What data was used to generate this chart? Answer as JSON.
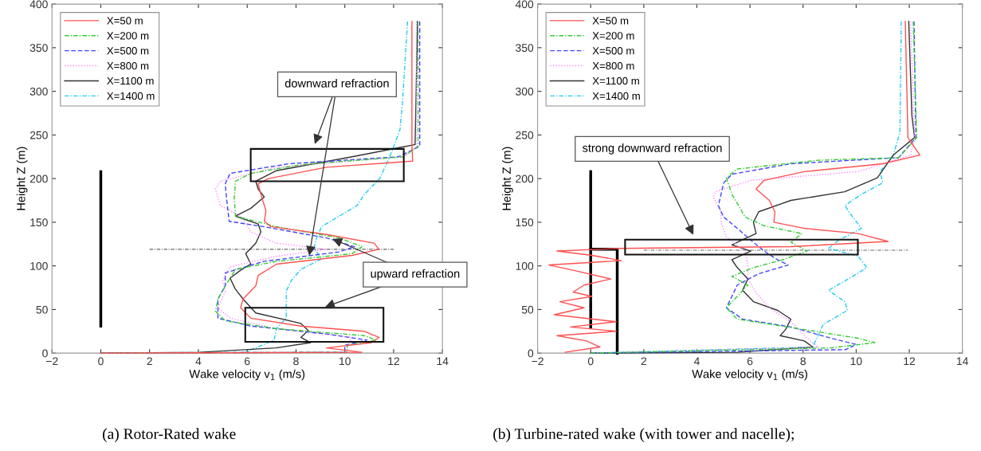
{
  "chart_data": [
    {
      "type": "line",
      "title": "(a) Rotor-Rated wake",
      "xlabel": "Wake velocity v$_{1}$ (m/s)",
      "ylabel": "Height Z (m)",
      "xlim": [
        -2,
        14
      ],
      "xticks": [
        -2,
        0,
        2,
        4,
        6,
        8,
        10,
        12,
        14
      ],
      "ylim": [
        0,
        400
      ],
      "yticks": [
        0,
        50,
        100,
        150,
        200,
        250,
        300,
        350,
        400
      ],
      "grid": false,
      "legend": "top left",
      "series": [
        {
          "name": "X=50 m",
          "color": "#ff5050",
          "line_style": "solid",
          "x": [
            12.75,
            12.75,
            12.78,
            9.25,
            6.87,
            6.45,
            6.56,
            6.77,
            6.7,
            6.97,
            9.25,
            11.2,
            11.4,
            10.3,
            7.2,
            6.45,
            6.35,
            5.83,
            5.73,
            6.15,
            8.2,
            10.8,
            11.4,
            11.1,
            9.25,
            10.7,
            0
          ],
          "values": [
            380,
            237,
            220,
            213,
            200,
            194,
            182,
            163,
            151,
            145,
            136,
            126,
            119,
            112,
            102,
            89,
            77,
            62,
            52,
            40,
            31,
            25,
            18,
            12,
            6,
            1,
            0
          ]
        },
        {
          "name": "X=200 m",
          "color": "#33cc33",
          "line_style": "dashdot",
          "x": [
            13.0,
            13.0,
            12.4,
            8.2,
            6.15,
            5.52,
            5.47,
            5.52,
            7.18,
            9.77,
            10.7,
            10.3,
            7.18,
            5.52,
            5.1,
            4.8,
            4.7,
            5.1,
            7.2,
            10.8,
            11.3,
            10.1,
            10.1,
            0
          ],
          "values": [
            380,
            237,
            225,
            216,
            206,
            197,
            176,
            157,
            145,
            132,
            122,
            114,
            105,
            96,
            77,
            62,
            48,
            37,
            28,
            20,
            15,
            9,
            1,
            0
          ]
        },
        {
          "name": "X=500 m",
          "color": "#4444ff",
          "line_style": "dashed",
          "x": [
            13.07,
            13.07,
            12.2,
            7.7,
            5.3,
            5.1,
            5.16,
            5.26,
            6.66,
            9.25,
            10.4,
            9.77,
            6.66,
            5.1,
            5.1,
            4.8,
            4.8,
            6.15,
            9.25,
            10.9,
            10.0,
            10.0,
            0
          ],
          "values": [
            380,
            237,
            225,
            217,
            206,
            194,
            176,
            151,
            145,
            132,
            122,
            116,
            105,
            92,
            77,
            62,
            40,
            31,
            22,
            15,
            9,
            1,
            0
          ]
        },
        {
          "name": "X=800 m",
          "color": "#ff88ff",
          "line_style": "dotted",
          "x": [
            12.93,
            12.93,
            12.4,
            7.2,
            4.9,
            4.7,
            4.9,
            5.73,
            6.15,
            7.18,
            9.25,
            7.2,
            5.3,
            5.0,
            5.1,
            4.8,
            5.3,
            7.2,
            10.3,
            10.1,
            10.1,
            0
          ],
          "values": [
            380,
            237,
            225,
            213,
            197,
            188,
            169,
            157,
            139,
            126,
            119,
            111,
            99,
            83,
            71,
            52,
            40,
            28,
            18,
            9,
            1,
            0
          ]
        },
        {
          "name": "X=1100 m",
          "color": "#333333",
          "line_style": "solid",
          "x": [
            12.98,
            12.88,
            10.3,
            7.18,
            6.35,
            6.45,
            6.7,
            6.15,
            5.52,
            6.45,
            6.56,
            6.35,
            5.94,
            6.15,
            5.73,
            5.3,
            5.5,
            5.83,
            6.35,
            8.2,
            8.5,
            8.2,
            8.6,
            7.18,
            4.07,
            0
          ],
          "values": [
            380,
            239,
            225,
            209,
            197,
            188,
            179,
            166,
            157,
            148,
            139,
            126,
            114,
            102,
            95,
            86,
            74,
            62,
            46,
            34,
            26,
            18,
            12,
            6,
            1,
            0
          ]
        },
        {
          "name": "X=1400 m",
          "color": "#22ccee",
          "line_style": "dashdot",
          "x": [
            12.57,
            12.36,
            12.26,
            11.84,
            11.43,
            10.8,
            10.5,
            9.77,
            9.05,
            8.84,
            8.74,
            9.05,
            8.2,
            7.8,
            7.6,
            7.6,
            7.6,
            7.2,
            7.1,
            6.35,
            5.9,
            0
          ],
          "values": [
            380,
            286,
            256,
            225,
            200,
            182,
            169,
            157,
            145,
            132,
            120,
            108,
            96,
            83,
            71,
            55,
            40,
            28,
            15,
            6,
            1,
            0
          ]
        },
        {
          "color": "#000000",
          "line_style": "solid",
          "x": [
            0,
            0
          ],
          "values": [
            31,
            208
          ]
        },
        {
          "color": "#666666",
          "line_style": "dashdot",
          "x": [
            2,
            12
          ],
          "values": [
            119,
            119
          ]
        }
      ],
      "annotations": [
        "downward refraction",
        {
          "text": "upward refraction",
          "x": 9.41,
          "y": 132
        }
      ]
    },
    {
      "type": "line",
      "title": "(b) Turbine-rated wake (with tower and nacelle);",
      "xlabel": "Wake velocity v$_{1}$ (m/s)",
      "ylabel": "Height Z (m)",
      "xlim": [
        -2,
        14
      ],
      "xticks": [
        -2,
        0,
        2,
        4,
        6,
        8,
        10,
        12,
        14
      ],
      "ylim": [
        0,
        400
      ],
      "yticks": [
        0,
        50,
        100,
        150,
        200,
        250,
        300,
        350,
        400
      ],
      "grid": false,
      "legend": "top left",
      "series": [
        {
          "name": "X=50 m",
          "color": "#ff5050",
          "line_style": "solid",
          "x": [
            11.85,
            11.95,
            12.4,
            11.0,
            8.05,
            6.53,
            6.23,
            6.73,
            6.94,
            6.9,
            8.05,
            10.08,
            11.2,
            7.55,
            1.1,
            -1.27,
            0.05,
            1.16,
            -1.57,
            -0.66,
            0.76,
            -0.25,
            -0.66,
            0.05,
            -1.16,
            -0.25,
            -1.37,
            0.96,
            -0.76,
            0.96,
            -1.27,
            -0.15,
            0.35,
            -0.96
          ],
          "values": [
            380,
            247,
            227,
            217,
            208,
            198,
            188,
            175,
            162,
            150,
            143,
            137,
            128,
            122,
            120,
            117,
            112,
            106,
            101,
            95,
            85,
            78,
            70,
            65,
            59,
            52,
            44,
            36,
            30,
            25,
            20,
            14,
            7,
            1
          ]
        },
        {
          "name": "X=200 m",
          "color": "#33cc33",
          "line_style": "dashdot",
          "x": [
            12.15,
            12.28,
            11.6,
            8.56,
            5.52,
            5.11,
            5.32,
            5.82,
            6.53,
            7.95,
            7.55,
            8.15,
            7.24,
            6.13,
            5.32,
            5.92,
            5.52,
            5.11,
            5.52,
            8.05,
            10.08,
            10.7,
            9.06,
            0
          ],
          "values": [
            380,
            247,
            224,
            221,
            211,
            201,
            182,
            156,
            146,
            137,
            127,
            117,
            107,
            98,
            88,
            78,
            65,
            52,
            39,
            27,
            17,
            12,
            6,
            0
          ]
        },
        {
          "name": "X=500 m",
          "color": "#4444ff",
          "line_style": "dashed",
          "x": [
            12.18,
            12.25,
            11.6,
            7.54,
            5.32,
            5.01,
            4.91,
            4.81,
            5.01,
            5.52,
            6.13,
            6.53,
            7.04,
            7.44,
            6.33,
            5.52,
            5.32,
            5.11,
            5.72,
            7.54,
            9.06,
            10.0,
            9.6,
            0
          ],
          "values": [
            380,
            247,
            224,
            217,
            205,
            195,
            182,
            169,
            156,
            143,
            127,
            117,
            107,
            101,
            91,
            78,
            65,
            52,
            39,
            30,
            17,
            10,
            4,
            0
          ]
        },
        {
          "name": "X=800 m",
          "color": "#ff88ff",
          "line_style": "dotted",
          "x": [
            12.05,
            12.2,
            12.05,
            10.08,
            6.03,
            4.71,
            4.61,
            4.91,
            4.91,
            5.11,
            5.82,
            5.92,
            5.92,
            6.23,
            6.73,
            7.54,
            8.05,
            8.56,
            0
          ],
          "values": [
            380,
            247,
            227,
            208,
            198,
            185,
            179,
            162,
            150,
            133,
            117,
            101,
            85,
            69,
            52,
            36,
            20,
            7,
            0
          ]
        },
        {
          "name": "X=1100 m",
          "color": "#333333",
          "line_style": "solid",
          "x": [
            11.98,
            12.1,
            12.2,
            11.4,
            10.8,
            9.57,
            7.54,
            6.33,
            6.13,
            6.23,
            5.72,
            5.32,
            6.03,
            5.32,
            5.52,
            5.92,
            5.72,
            6.13,
            7.04,
            7.54,
            7.34,
            7.14,
            8.05,
            8.36,
            5.52,
            0
          ],
          "values": [
            380,
            272,
            247,
            227,
            201,
            185,
            175,
            162,
            150,
            137,
            130,
            124,
            117,
            107,
            98,
            85,
            72,
            59,
            49,
            39,
            27,
            20,
            14,
            7,
            1,
            0
          ]
        },
        {
          "name": "X=1400 m",
          "color": "#22ccee",
          "line_style": "dashdot",
          "x": [
            11.7,
            11.65,
            11.4,
            10.9,
            11.0,
            10.2,
            9.57,
            9.87,
            10.2,
            9.37,
            8.96,
            10.08,
            10.4,
            9.87,
            8.96,
            9.57,
            9.67,
            8.76,
            8.56,
            8.36,
            0
          ],
          "values": [
            380,
            253,
            227,
            208,
            195,
            182,
            169,
            156,
            143,
            130,
            120,
            111,
            98,
            88,
            72,
            59,
            49,
            33,
            20,
            7,
            0
          ]
        },
        {
          "color": "#000000",
          "line_style": "solid",
          "x": [
            0,
            0
          ],
          "values": [
            30,
            208
          ]
        },
        {
          "color": "#000000",
          "line_style": "solid",
          "x": [
            0,
            1,
            1
          ],
          "values": [
            119,
            119,
            0
          ]
        },
        {
          "color": "#666666",
          "line_style": "dashdot",
          "x": [
            2,
            11.95
          ],
          "values": [
            118,
            118
          ]
        }
      ],
      "annotations": [
        "strong downward refraction"
      ]
    }
  ]
}
